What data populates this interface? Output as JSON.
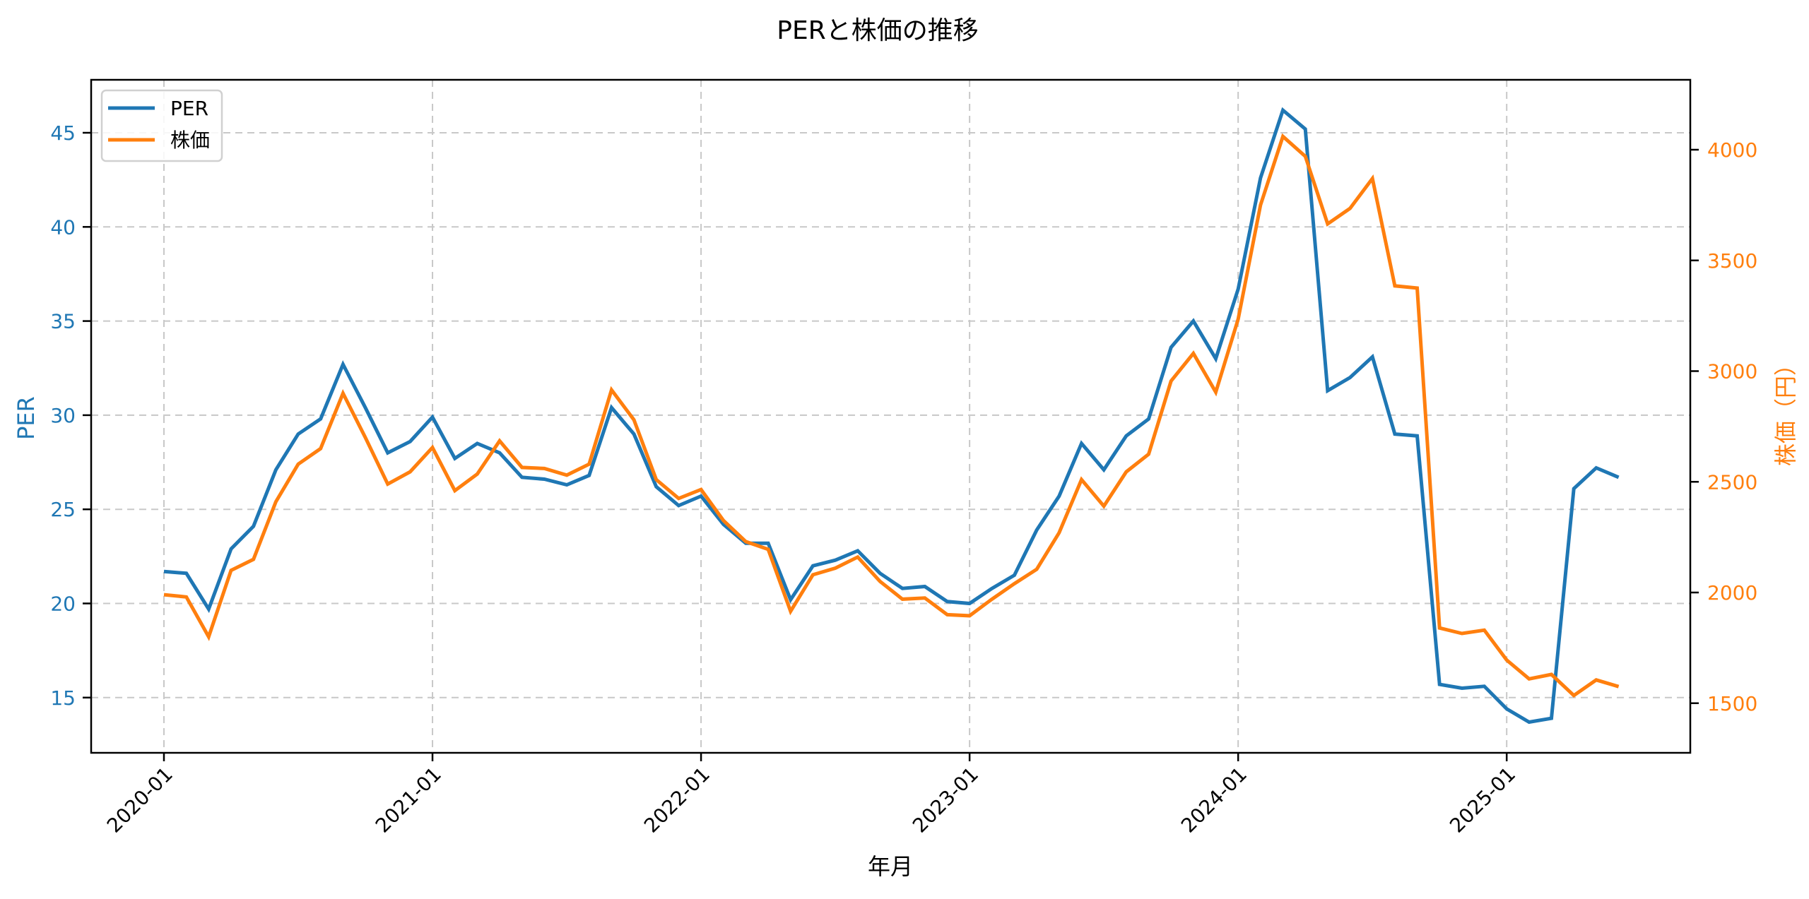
{
  "chart_data": {
    "type": "line",
    "title": "PERと株価の推移",
    "xlabel": "年月",
    "ylabel": "PER",
    "ylabel_right": "株価（円）",
    "ylim": [
      12.2,
      47.8
    ],
    "ylim_right": [
      1290,
      4330
    ],
    "yticks": [
      15,
      20,
      25,
      30,
      35,
      40,
      45
    ],
    "yticks_right": [
      1500,
      2000,
      2500,
      3000,
      3500,
      4000
    ],
    "xticks": [
      "2020-01",
      "2021-01",
      "2022-01",
      "2023-01",
      "2024-01",
      "2025-01"
    ],
    "grid": true,
    "legend_position": "upper left",
    "x": [
      "2020-01",
      "2020-02",
      "2020-03",
      "2020-04",
      "2020-05",
      "2020-06",
      "2020-07",
      "2020-08",
      "2020-09",
      "2020-10",
      "2020-11",
      "2020-12",
      "2021-01",
      "2021-02",
      "2021-03",
      "2021-04",
      "2021-05",
      "2021-06",
      "2021-07",
      "2021-08",
      "2021-09",
      "2021-10",
      "2021-11",
      "2021-12",
      "2022-01",
      "2022-02",
      "2022-03",
      "2022-04",
      "2022-05",
      "2022-06",
      "2022-07",
      "2022-08",
      "2022-09",
      "2022-10",
      "2022-11",
      "2022-12",
      "2023-01",
      "2023-02",
      "2023-03",
      "2023-04",
      "2023-05",
      "2023-06",
      "2023-07",
      "2023-08",
      "2023-09",
      "2023-10",
      "2023-11",
      "2023-12",
      "2024-01",
      "2024-02",
      "2024-03",
      "2024-04",
      "2024-05",
      "2024-06",
      "2024-07",
      "2024-08",
      "2024-09",
      "2024-10",
      "2024-11",
      "2024-12",
      "2025-01",
      "2025-02",
      "2025-03",
      "2025-04",
      "2025-05",
      "2025-06"
    ],
    "series": [
      {
        "name": "PER",
        "axis": "left",
        "color": "#1f77b4",
        "values": [
          21.7,
          21.6,
          19.7,
          22.9,
          24.1,
          27.1,
          29.0,
          29.8,
          32.7,
          30.4,
          28.0,
          28.6,
          29.9,
          27.7,
          28.5,
          28.0,
          26.7,
          26.6,
          26.3,
          26.8,
          30.4,
          29.0,
          26.2,
          25.2,
          25.7,
          24.2,
          23.2,
          23.2,
          20.2,
          22.0,
          22.3,
          22.8,
          21.6,
          20.8,
          20.9,
          20.1,
          20.0,
          20.8,
          21.5,
          23.9,
          25.7,
          28.5,
          27.1,
          28.9,
          29.8,
          33.6,
          35.0,
          33.0,
          36.7,
          42.6,
          46.2,
          45.2,
          31.3,
          32.0,
          33.1,
          29.0,
          28.9,
          15.7,
          15.5,
          15.6,
          14.4,
          13.7,
          13.9,
          26.1,
          27.2,
          26.7
        ]
      },
      {
        "name": "株価",
        "axis": "right",
        "color": "#ff7f0e",
        "values": [
          1990,
          1980,
          1800,
          2100,
          2150,
          2410,
          2580,
          2650,
          2900,
          2700,
          2490,
          2545,
          2655,
          2460,
          2535,
          2685,
          2565,
          2560,
          2530,
          2580,
          2915,
          2780,
          2510,
          2425,
          2465,
          2325,
          2230,
          2195,
          1915,
          2080,
          2110,
          2160,
          2050,
          1970,
          1975,
          1900,
          1895,
          1970,
          2040,
          2105,
          2270,
          2510,
          2390,
          2545,
          2625,
          2955,
          3080,
          2905,
          3235,
          3750,
          4060,
          3970,
          3665,
          3735,
          3870,
          3385,
          3375,
          1840,
          1815,
          1830,
          1695,
          1610,
          1630,
          1535,
          1605,
          1575
        ]
      }
    ]
  },
  "legend": {
    "items": [
      {
        "label": "PER",
        "color": "#1f77b4"
      },
      {
        "label": "株価",
        "color": "#ff7f0e"
      }
    ]
  },
  "colors": {
    "left_axis": "#1f77b4",
    "right_axis": "#ff7f0e",
    "grid": "#c8c8c8",
    "frame": "#000000"
  }
}
